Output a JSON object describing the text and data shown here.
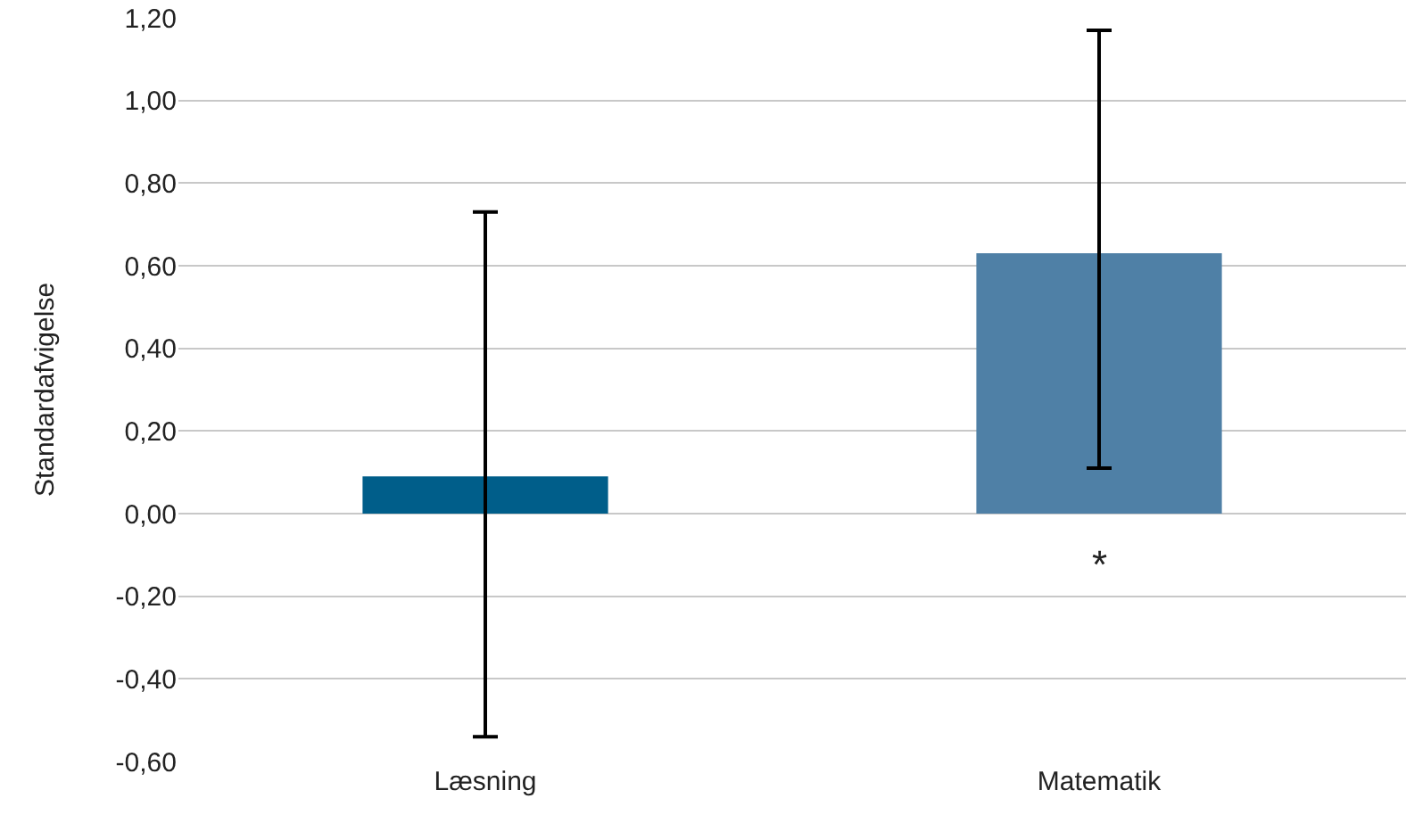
{
  "chart_data": {
    "type": "bar",
    "ylabel": "Standardafvigelse",
    "categories": [
      "Læsning",
      "Matematik"
    ],
    "values": [
      0.09,
      0.63
    ],
    "colors": [
      "#005e8a",
      "#4f80a6"
    ],
    "errors": [
      [
        -0.54,
        0.73
      ],
      [
        0.11,
        1.17
      ]
    ],
    "ylim": [
      -0.6,
      1.2
    ],
    "yticks": [
      {
        "value": -0.6,
        "label": "-0,60"
      },
      {
        "value": -0.4,
        "label": "-0,40"
      },
      {
        "value": -0.2,
        "label": "-0,20"
      },
      {
        "value": 0,
        "label": "0,00"
      },
      {
        "value": 0.2,
        "label": "0,20"
      },
      {
        "value": 0.4,
        "label": "0,40"
      },
      {
        "value": 0.6,
        "label": "0,60"
      },
      {
        "value": 0.8,
        "label": "0,80"
      },
      {
        "value": 1,
        "label": "1,00"
      },
      {
        "value": 1.2,
        "label": "1,20"
      }
    ],
    "grid": "y",
    "annotations": [
      "*"
    ]
  }
}
